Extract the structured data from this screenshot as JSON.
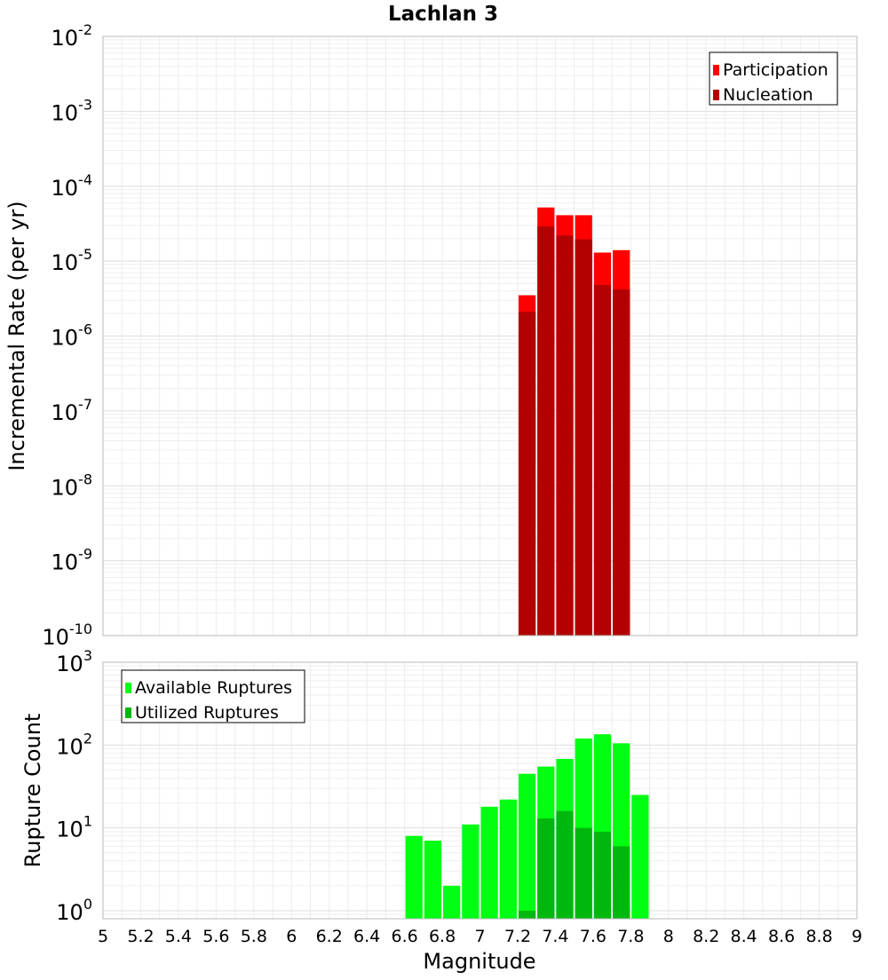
{
  "chart_data": [
    {
      "type": "bar",
      "title": "Lachlan 3",
      "xlabel": "Magnitude",
      "ylabel": "Incremental Rate (per yr)",
      "y_scale": "log",
      "xlim": [
        5,
        9
      ],
      "ylim": [
        1e-10,
        0.01
      ],
      "bin_width": 0.1,
      "y_ticks": [
        {
          "base": "10",
          "exp": "-10",
          "value": 1e-10
        },
        {
          "base": "10",
          "exp": "-9",
          "value": 1e-09
        },
        {
          "base": "10",
          "exp": "-8",
          "value": 1e-08
        },
        {
          "base": "10",
          "exp": "-7",
          "value": 1e-07
        },
        {
          "base": "10",
          "exp": "-6",
          "value": 1e-06
        },
        {
          "base": "10",
          "exp": "-5",
          "value": 1e-05
        },
        {
          "base": "10",
          "exp": "-4",
          "value": 0.0001
        },
        {
          "base": "10",
          "exp": "-3",
          "value": 0.001
        },
        {
          "base": "10",
          "exp": "-2",
          "value": 0.01
        }
      ],
      "legend": {
        "position": "top-right",
        "entries": [
          "Participation",
          "Nucleation"
        ]
      },
      "grid": true,
      "series": [
        {
          "name": "Participation",
          "color": "#ff0000",
          "x": [
            7.25,
            7.35,
            7.45,
            7.55,
            7.65,
            7.75
          ],
          "values": [
            3.5e-06,
            5.2e-05,
            4.1e-05,
            4.1e-05,
            1.3e-05,
            1.4e-05
          ]
        },
        {
          "name": "Nucleation",
          "color": "#b30000",
          "x": [
            7.25,
            7.35,
            7.45,
            7.55,
            7.65,
            7.75
          ],
          "values": [
            2.1e-06,
            2.9e-05,
            2.2e-05,
            1.95e-05,
            4.8e-06,
            4.2e-06
          ]
        }
      ]
    },
    {
      "type": "bar",
      "title": "",
      "xlabel": "Magnitude",
      "ylabel": "Rupture Count",
      "y_scale": "log",
      "xlim": [
        5,
        9
      ],
      "ylim": [
        0.8,
        1000
      ],
      "bin_width": 0.1,
      "x_ticks": [
        "5",
        "5.2",
        "5.4",
        "5.6",
        "5.8",
        "6",
        "6.2",
        "6.4",
        "6.6",
        "6.8",
        "7",
        "7.2",
        "7.4",
        "7.6",
        "7.8",
        "8",
        "8.2",
        "8.4",
        "8.6",
        "8.8",
        "9"
      ],
      "y_ticks": [
        {
          "base": "10",
          "exp": "0",
          "value": 1
        },
        {
          "base": "10",
          "exp": "1",
          "value": 10
        },
        {
          "base": "10",
          "exp": "2",
          "value": 100
        },
        {
          "base": "10",
          "exp": "3",
          "value": 1000
        }
      ],
      "legend": {
        "position": "top-left",
        "entries": [
          "Available Ruptures",
          "Utilized Ruptures"
        ]
      },
      "grid": true,
      "series": [
        {
          "name": "Available Ruptures",
          "color": "#00ff12",
          "x": [
            6.65,
            6.75,
            6.85,
            6.95,
            7.05,
            7.15,
            7.25,
            7.35,
            7.45,
            7.55,
            7.65,
            7.75,
            7.85
          ],
          "values": [
            8,
            7,
            2,
            11,
            18,
            22,
            45,
            55,
            68,
            120,
            135,
            105,
            25
          ]
        },
        {
          "name": "Utilized Ruptures",
          "color": "#00b80d",
          "x": [
            7.25,
            7.35,
            7.45,
            7.55,
            7.65,
            7.75
          ],
          "values": [
            1,
            13,
            16,
            10,
            9,
            6
          ]
        }
      ]
    }
  ]
}
